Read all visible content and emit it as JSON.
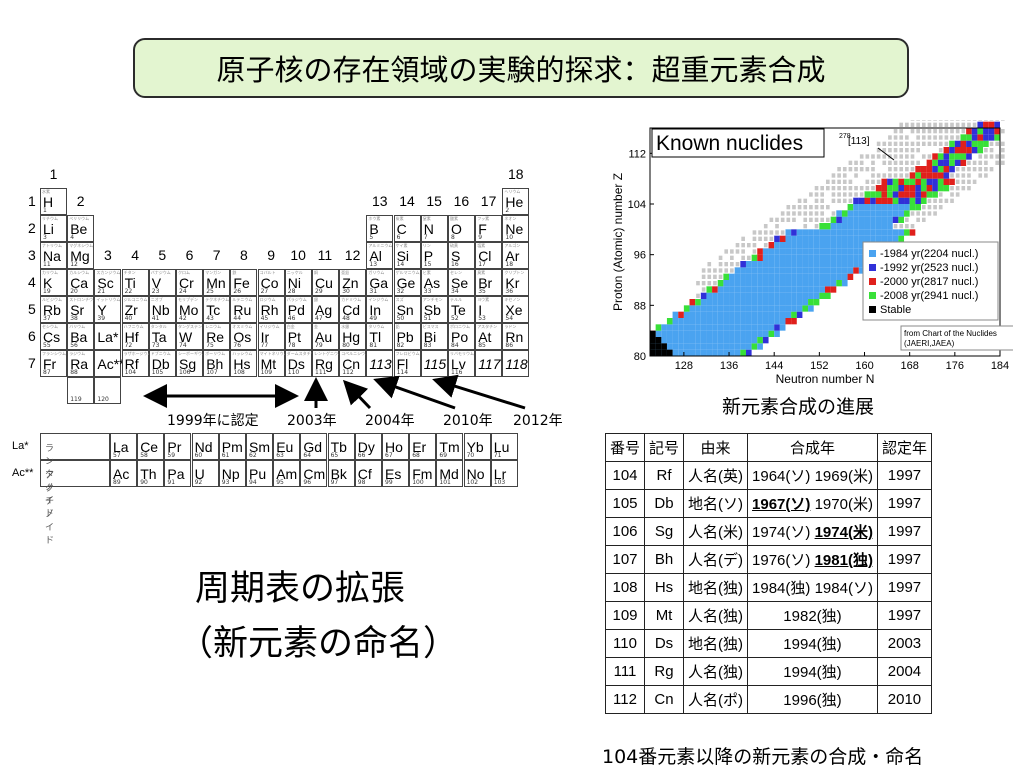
{
  "title": "原子核の存在領域の実験的探求：超重元素合成",
  "periodic_table": {
    "group_labels": [
      "1",
      "2",
      "3",
      "4",
      "5",
      "6",
      "7",
      "8",
      "9",
      "10",
      "11",
      "12",
      "13",
      "14",
      "15",
      "16",
      "17",
      "18"
    ],
    "period_labels": [
      "1",
      "2",
      "3",
      "4",
      "5",
      "6",
      "7"
    ],
    "elements": [
      {
        "sym": "H",
        "num": "1",
        "jp": "水素"
      },
      {
        "sym": "He",
        "num": "2",
        "jp": "ヘリウム"
      },
      {
        "sym": "Li",
        "num": "3",
        "jp": "リチウム"
      },
      {
        "sym": "Be",
        "num": "4",
        "jp": "ベリリウム"
      },
      {
        "sym": "B",
        "num": "5",
        "jp": "ホウ素"
      },
      {
        "sym": "C",
        "num": "6",
        "jp": "炭素"
      },
      {
        "sym": "N",
        "num": "7",
        "jp": "窒素"
      },
      {
        "sym": "O",
        "num": "8",
        "jp": "酸素"
      },
      {
        "sym": "F",
        "num": "9",
        "jp": "フッ素"
      },
      {
        "sym": "Ne",
        "num": "10",
        "jp": "ネオン"
      },
      {
        "sym": "Na",
        "num": "11",
        "jp": "ナトリウム"
      },
      {
        "sym": "Mg",
        "num": "12",
        "jp": "マグネシウム"
      },
      {
        "sym": "Al",
        "num": "13",
        "jp": "アルミニウム"
      },
      {
        "sym": "Si",
        "num": "14",
        "jp": "ケイ素"
      },
      {
        "sym": "P",
        "num": "15",
        "jp": "リン"
      },
      {
        "sym": "S",
        "num": "16",
        "jp": "硫黄"
      },
      {
        "sym": "Cl",
        "num": "17",
        "jp": "塩素"
      },
      {
        "sym": "Ar",
        "num": "18",
        "jp": "アルゴン"
      },
      {
        "sym": "K",
        "num": "19",
        "jp": "カリウム"
      },
      {
        "sym": "Ca",
        "num": "20",
        "jp": "カルシウム"
      },
      {
        "sym": "Sc",
        "num": "21",
        "jp": "スカンジウム"
      },
      {
        "sym": "Ti",
        "num": "22",
        "jp": "チタン"
      },
      {
        "sym": "V",
        "num": "23",
        "jp": "バナジウム"
      },
      {
        "sym": "Cr",
        "num": "24",
        "jp": "クロム"
      },
      {
        "sym": "Mn",
        "num": "25",
        "jp": "マンガン"
      },
      {
        "sym": "Fe",
        "num": "26",
        "jp": "鉄"
      },
      {
        "sym": "Co",
        "num": "27",
        "jp": "コバルト"
      },
      {
        "sym": "Ni",
        "num": "28",
        "jp": "ニッケル"
      },
      {
        "sym": "Cu",
        "num": "29",
        "jp": "銅"
      },
      {
        "sym": "Zn",
        "num": "30",
        "jp": "亜鉛"
      },
      {
        "sym": "Ga",
        "num": "31",
        "jp": "ガリウム"
      },
      {
        "sym": "Ge",
        "num": "32",
        "jp": "ゲルマニウム"
      },
      {
        "sym": "As",
        "num": "33",
        "jp": "ヒ素"
      },
      {
        "sym": "Se",
        "num": "34",
        "jp": "セレン"
      },
      {
        "sym": "Br",
        "num": "35",
        "jp": "臭素"
      },
      {
        "sym": "Kr",
        "num": "36",
        "jp": "クリプトン"
      },
      {
        "sym": "Rb",
        "num": "37",
        "jp": "ルビジウム"
      },
      {
        "sym": "Sr",
        "num": "38",
        "jp": "ストロンチウム"
      },
      {
        "sym": "Y",
        "num": "39",
        "jp": "イットリウム"
      },
      {
        "sym": "Zr",
        "num": "40",
        "jp": "ジルコニウム"
      },
      {
        "sym": "Nb",
        "num": "41",
        "jp": "ニオブ"
      },
      {
        "sym": "Mo",
        "num": "42",
        "jp": "モリブデン"
      },
      {
        "sym": "Tc",
        "num": "43",
        "jp": "テクネチウム"
      },
      {
        "sym": "Ru",
        "num": "44",
        "jp": "ルテニウム"
      },
      {
        "sym": "Rh",
        "num": "45",
        "jp": "ロジウム"
      },
      {
        "sym": "Pd",
        "num": "46",
        "jp": "パラジウム"
      },
      {
        "sym": "Ag",
        "num": "47",
        "jp": "銀"
      },
      {
        "sym": "Cd",
        "num": "48",
        "jp": "カドミウム"
      },
      {
        "sym": "In",
        "num": "49",
        "jp": "インジウム"
      },
      {
        "sym": "Sn",
        "num": "50",
        "jp": "スズ"
      },
      {
        "sym": "Sb",
        "num": "51",
        "jp": "アンチモン"
      },
      {
        "sym": "Te",
        "num": "52",
        "jp": "テルル"
      },
      {
        "sym": "I",
        "num": "53",
        "jp": "ヨウ素"
      },
      {
        "sym": "Xe",
        "num": "54",
        "jp": "キセノン"
      },
      {
        "sym": "Cs",
        "num": "55",
        "jp": "セシウム"
      },
      {
        "sym": "Ba",
        "num": "56",
        "jp": "バリウム"
      },
      {
        "sym": "La*",
        "num": "",
        "jp": ""
      },
      {
        "sym": "Hf",
        "num": "72",
        "jp": "ハフニウム"
      },
      {
        "sym": "Ta",
        "num": "73",
        "jp": "タンタル"
      },
      {
        "sym": "W",
        "num": "74",
        "jp": "タングステン"
      },
      {
        "sym": "Re",
        "num": "75",
        "jp": "レニウム"
      },
      {
        "sym": "Os",
        "num": "76",
        "jp": "オスミウム"
      },
      {
        "sym": "Ir",
        "num": "77",
        "jp": "イリジウム"
      },
      {
        "sym": "Pt",
        "num": "78",
        "jp": "白金"
      },
      {
        "sym": "Au",
        "num": "79",
        "jp": "金"
      },
      {
        "sym": "Hg",
        "num": "80",
        "jp": "水銀"
      },
      {
        "sym": "Tl",
        "num": "81",
        "jp": "タリウム"
      },
      {
        "sym": "Pb",
        "num": "82",
        "jp": "鉛"
      },
      {
        "sym": "Bi",
        "num": "83",
        "jp": "ビスマス"
      },
      {
        "sym": "Po",
        "num": "84",
        "jp": "ポロニウム"
      },
      {
        "sym": "At",
        "num": "85",
        "jp": "アスタチン"
      },
      {
        "sym": "Rn",
        "num": "86",
        "jp": "ラドン"
      },
      {
        "sym": "Fr",
        "num": "87",
        "jp": "フランシウム"
      },
      {
        "sym": "Ra",
        "num": "88",
        "jp": "ラジウム"
      },
      {
        "sym": "Ac**",
        "num": "",
        "jp": ""
      },
      {
        "sym": "Rf",
        "num": "104",
        "jp": "ラザホージウム"
      },
      {
        "sym": "Db",
        "num": "105",
        "jp": "ドブニウム"
      },
      {
        "sym": "Sg",
        "num": "106",
        "jp": "シーボーギウム"
      },
      {
        "sym": "Bh",
        "num": "107",
        "jp": "ボーリウム"
      },
      {
        "sym": "Hs",
        "num": "108",
        "jp": "ハッシウム"
      },
      {
        "sym": "Mt",
        "num": "109",
        "jp": "マイトネリウム"
      },
      {
        "sym": "Ds",
        "num": "110",
        "jp": "ダームスタチウム"
      },
      {
        "sym": "Rg",
        "num": "111",
        "jp": "レントゲニウム"
      },
      {
        "sym": "Cn",
        "num": "112",
        "jp": "コペルニシウム"
      },
      {
        "sym": "113",
        "num": "",
        "jp": ""
      },
      {
        "sym": "Fl",
        "num": "114",
        "jp": "フレロビウム"
      },
      {
        "sym": "115",
        "num": "",
        "jp": ""
      },
      {
        "sym": "Lv",
        "num": "116",
        "jp": "リバモリウム"
      },
      {
        "sym": "117",
        "num": "",
        "jp": ""
      },
      {
        "sym": "118",
        "num": "",
        "jp": ""
      },
      {
        "sym": "",
        "num": "119",
        "jp": ""
      },
      {
        "sym": "",
        "num": "120",
        "jp": ""
      }
    ],
    "lanthanide_label": "La*",
    "lanthanide_jp": "ランタノイド",
    "lanthanides": [
      {
        "sym": "La",
        "num": "57"
      },
      {
        "sym": "Ce",
        "num": "58"
      },
      {
        "sym": "Pr",
        "num": "59"
      },
      {
        "sym": "Nd",
        "num": "60"
      },
      {
        "sym": "Pm",
        "num": "61"
      },
      {
        "sym": "Sm",
        "num": "62"
      },
      {
        "sym": "Eu",
        "num": "63"
      },
      {
        "sym": "Gd",
        "num": "64"
      },
      {
        "sym": "Tb",
        "num": "65"
      },
      {
        "sym": "Dy",
        "num": "66"
      },
      {
        "sym": "Ho",
        "num": "67"
      },
      {
        "sym": "Er",
        "num": "68"
      },
      {
        "sym": "Tm",
        "num": "69"
      },
      {
        "sym": "Yb",
        "num": "70"
      },
      {
        "sym": "Lu",
        "num": "71"
      }
    ],
    "actinide_label": "Ac**",
    "actinide_jp": "アクチノイド",
    "actinides": [
      {
        "sym": "Ac",
        "num": "89"
      },
      {
        "sym": "Th",
        "num": "90"
      },
      {
        "sym": "Pa",
        "num": "91"
      },
      {
        "sym": "U",
        "num": "92"
      },
      {
        "sym": "Np",
        "num": "93"
      },
      {
        "sym": "Pu",
        "num": "94"
      },
      {
        "sym": "Am",
        "num": "95"
      },
      {
        "sym": "Cm",
        "num": "96"
      },
      {
        "sym": "Bk",
        "num": "97"
      },
      {
        "sym": "Cf",
        "num": "98"
      },
      {
        "sym": "Es",
        "num": "99"
      },
      {
        "sym": "Fm",
        "num": "100"
      },
      {
        "sym": "Md",
        "num": "101"
      },
      {
        "sym": "No",
        "num": "102"
      },
      {
        "sym": "Lr",
        "num": "103"
      }
    ],
    "year_labels": [
      "1999年に認定",
      "2003年",
      "2004年",
      "2010年",
      "2012年"
    ]
  },
  "subtitle_line1": "周期表の拡張",
  "subtitle_line2": "（新元素の命名）",
  "chart_data": {
    "type": "scatter",
    "title": "Known nuclides",
    "annotation_sup": "278",
    "annotation": "[113]",
    "xlabel": "Neutron number N",
    "ylabel": "Proton (Atomic) number Z",
    "xlim": [
      122,
      184
    ],
    "ylim": [
      80,
      116
    ],
    "x_ticks": [
      "128",
      "136",
      "144",
      "152",
      "160",
      "168",
      "176",
      "184"
    ],
    "y_ticks": [
      "80",
      "88",
      "96",
      "104",
      "112"
    ],
    "legend": [
      "-1984 yr(2204 nucl.)",
      "-1992 yr(2523 nucl.)",
      "-2000 yr(2817 nucl.)",
      "-2008 yr(2941 nucl.)",
      "Stable"
    ],
    "legend_colors": [
      "#4aa3f0",
      "#3030d8",
      "#e0201c",
      "#38e038",
      "#000000"
    ],
    "source": [
      "from Chart of the Nuclides",
      "(JAERI,JAEA)"
    ]
  },
  "chart_caption": "新元素合成の進展",
  "table": {
    "headers": [
      "番号",
      "記号",
      "由来",
      "合成年",
      "認定年"
    ],
    "rows": [
      {
        "no": "104",
        "sym": "Rf",
        "origin": "人名(英)",
        "y1": "1964(ソ)",
        "y2": "1969(米)",
        "bold": "",
        "ack": "1997"
      },
      {
        "no": "105",
        "sym": "Db",
        "origin": "地名(ソ)",
        "y1": "1967(ソ)",
        "y2": "1970(米)",
        "bold": "y1",
        "ack": "1997"
      },
      {
        "no": "106",
        "sym": "Sg",
        "origin": "人名(米)",
        "y1": "1974(ソ)",
        "y2": "1974(米)",
        "bold": "y2",
        "ack": "1997"
      },
      {
        "no": "107",
        "sym": "Bh",
        "origin": "人名(デ)",
        "y1": "1976(ソ)",
        "y2": "1981(独)",
        "bold": "y2",
        "ack": "1997"
      },
      {
        "no": "108",
        "sym": "Hs",
        "origin": "地名(独)",
        "y1": "1984(独)",
        "y2": "1984(ソ)",
        "bold": "",
        "ack": "1997"
      },
      {
        "no": "109",
        "sym": "Mt",
        "origin": "人名(独)",
        "y1": "1982(独)",
        "y2": "",
        "bold": "",
        "ack": "1997"
      },
      {
        "no": "110",
        "sym": "Ds",
        "origin": "地名(独)",
        "y1": "1994(独)",
        "y2": "",
        "bold": "",
        "ack": "2003"
      },
      {
        "no": "111",
        "sym": "Rg",
        "origin": "人名(独)",
        "y1": "1994(独)",
        "y2": "",
        "bold": "",
        "ack": "2004"
      },
      {
        "no": "112",
        "sym": "Cn",
        "origin": "人名(ポ)",
        "y1": "1996(独)",
        "y2": "",
        "bold": "",
        "ack": "2010"
      }
    ]
  },
  "table_caption": "104番元素以降の新元素の合成・命名"
}
